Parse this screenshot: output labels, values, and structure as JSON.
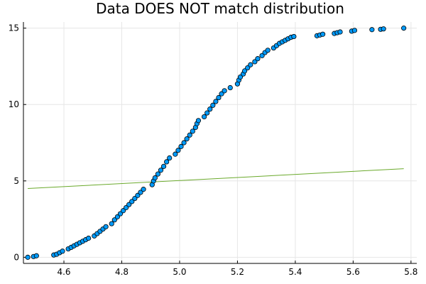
{
  "chart_data": {
    "type": "scatter",
    "title": "Data DOES NOT match distribution",
    "xlabel": "",
    "ylabel": "",
    "xlim": [
      4.46,
      5.82
    ],
    "ylim": [
      -0.4,
      15.4
    ],
    "x_ticks": [
      4.6,
      4.8,
      5.0,
      5.2,
      5.4,
      5.6,
      5.8
    ],
    "x_tick_labels": [
      "4.6",
      "4.8",
      "5.0",
      "5.2",
      "5.4",
      "5.6",
      "5.8"
    ],
    "y_ticks": [
      0,
      5,
      10,
      15
    ],
    "y_tick_labels": [
      "0",
      "5",
      "10",
      "15"
    ],
    "grid": true,
    "legend": "none",
    "colors": {
      "points": "#009af9",
      "point_edge": "#000000",
      "line": "#6aa92b",
      "grid": "#e6e6e6",
      "axis": "#000000"
    },
    "series": [
      {
        "kind": "scatter",
        "x": [
          4.475,
          4.495,
          4.505,
          4.565,
          4.575,
          4.585,
          4.595,
          4.615,
          4.625,
          4.635,
          4.645,
          4.655,
          4.665,
          4.675,
          4.685,
          4.705,
          4.715,
          4.725,
          4.735,
          4.745,
          4.765,
          4.775,
          4.785,
          4.795,
          4.805,
          4.815,
          4.825,
          4.835,
          4.845,
          4.855,
          4.865,
          4.875,
          4.905,
          4.91,
          4.915,
          4.925,
          4.935,
          4.945,
          4.955,
          4.965,
          4.985,
          4.995,
          5.005,
          5.015,
          5.025,
          5.035,
          5.045,
          5.055,
          5.06,
          5.065,
          5.085,
          5.095,
          5.105,
          5.115,
          5.125,
          5.135,
          5.145,
          5.155,
          5.175,
          5.2,
          5.205,
          5.21,
          5.22,
          5.225,
          5.235,
          5.245,
          5.26,
          5.27,
          5.285,
          5.295,
          5.305,
          5.325,
          5.335,
          5.345,
          5.355,
          5.365,
          5.375,
          5.385,
          5.395,
          5.475,
          5.485,
          5.495,
          5.535,
          5.545,
          5.555,
          5.595,
          5.605,
          5.665,
          5.695,
          5.705,
          5.775
        ],
        "y": [
          0.0,
          0.05,
          0.1,
          0.15,
          0.2,
          0.3,
          0.4,
          0.55,
          0.65,
          0.75,
          0.85,
          0.95,
          1.05,
          1.15,
          1.25,
          1.4,
          1.55,
          1.7,
          1.85,
          2.0,
          2.2,
          2.45,
          2.65,
          2.85,
          3.05,
          3.25,
          3.45,
          3.65,
          3.85,
          4.05,
          4.25,
          4.45,
          4.75,
          5.0,
          5.2,
          5.45,
          5.7,
          5.95,
          6.25,
          6.5,
          6.75,
          7.0,
          7.25,
          7.5,
          7.75,
          8.0,
          8.25,
          8.5,
          8.75,
          8.95,
          9.2,
          9.45,
          9.7,
          9.95,
          10.2,
          10.45,
          10.7,
          10.9,
          11.1,
          11.35,
          11.6,
          11.8,
          12.0,
          12.2,
          12.4,
          12.6,
          12.8,
          13.0,
          13.2,
          13.4,
          13.55,
          13.7,
          13.85,
          14.0,
          14.1,
          14.2,
          14.3,
          14.4,
          14.45,
          14.5,
          14.55,
          14.6,
          14.65,
          14.7,
          14.75,
          14.8,
          14.85,
          14.9,
          14.92,
          14.95,
          15.0
        ]
      },
      {
        "kind": "line",
        "x": [
          4.475,
          5.775
        ],
        "y": [
          4.5,
          5.8
        ]
      }
    ]
  }
}
